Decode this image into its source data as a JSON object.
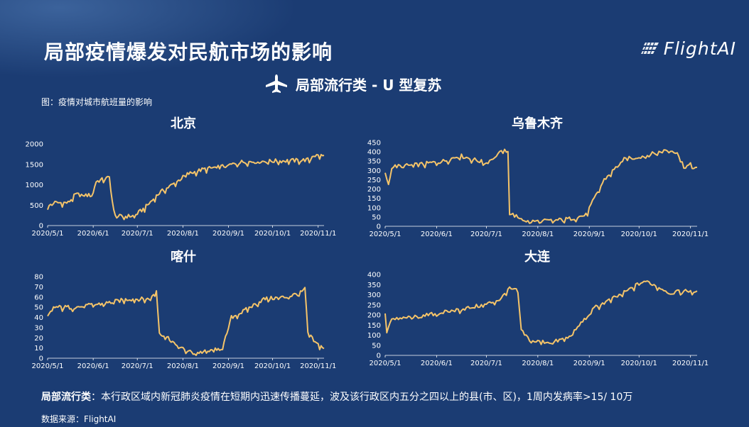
{
  "title": "局部疫情爆发对民航市场的影响",
  "logo": {
    "text": "FlightAI"
  },
  "subtitle": "局部流行类 - U 型复苏",
  "caption": "图：疫情对城市航班量的影响",
  "footnote": {
    "term": "局部流行类",
    "text": "：本行政区域内新冠肺炎疫情在短期内迅速传播蔓延，波及该行政区内五分之四以上的县(市、区)，1周内发病率>15/ 10万"
  },
  "source": "数据来源：FlightAI",
  "colors": {
    "background": "#1b3c73",
    "line": "#f5c469",
    "axis": "#ffffff"
  },
  "chart_data": [
    {
      "type": "line",
      "title": "北京",
      "x_range": [
        "2020-05-01",
        "2020-11-05"
      ],
      "ylim": [
        0,
        2000
      ],
      "yticks": [
        0,
        500,
        1000,
        1500,
        2000
      ],
      "xticks": [
        "2020/5/1",
        "2020/6/1",
        "2020/7/1",
        "2020/8/1",
        "2020/9/1",
        "2020/10/1",
        "2020/11/1"
      ],
      "key_points": [
        [
          "2020-05-01",
          420
        ],
        [
          "2020-05-04",
          560
        ],
        [
          "2020-05-15",
          560
        ],
        [
          "2020-05-20",
          760
        ],
        [
          "2020-05-31",
          740
        ],
        [
          "2020-06-03",
          1080
        ],
        [
          "2020-06-12",
          1180
        ],
        [
          "2020-06-14",
          600
        ],
        [
          "2020-06-16",
          230
        ],
        [
          "2020-06-21",
          220
        ],
        [
          "2020-06-29",
          240
        ],
        [
          "2020-07-06",
          430
        ],
        [
          "2020-07-16",
          800
        ],
        [
          "2020-07-26",
          1030
        ],
        [
          "2020-08-04",
          1260
        ],
        [
          "2020-08-15",
          1380
        ],
        [
          "2020-08-30",
          1460
        ],
        [
          "2020-09-10",
          1560
        ],
        [
          "2020-09-30",
          1580
        ],
        [
          "2020-10-20",
          1600
        ],
        [
          "2020-10-27",
          1620
        ],
        [
          "2020-10-28",
          1720
        ],
        [
          "2020-11-05",
          1710
        ]
      ]
    },
    {
      "type": "line",
      "title": "乌鲁木齐",
      "x_range": [
        "2020-05-01",
        "2020-11-05"
      ],
      "ylim": [
        0,
        450
      ],
      "yticks": [
        0,
        50,
        100,
        150,
        200,
        250,
        300,
        350,
        400,
        450
      ],
      "xticks": [
        "2020/5/1",
        "2020/6/1",
        "2020/7/1",
        "2020/8/1",
        "2020/9/1",
        "2020/10/1",
        "2020/11/1"
      ],
      "key_points": [
        [
          "2020-05-01",
          280
        ],
        [
          "2020-05-03",
          230
        ],
        [
          "2020-05-05",
          320
        ],
        [
          "2020-05-20",
          330
        ],
        [
          "2020-06-05",
          350
        ],
        [
          "2020-06-15",
          380
        ],
        [
          "2020-07-01",
          340
        ],
        [
          "2020-07-08",
          390
        ],
        [
          "2020-07-14",
          410
        ],
        [
          "2020-07-15",
          70
        ],
        [
          "2020-07-20",
          50
        ],
        [
          "2020-07-26",
          25
        ],
        [
          "2020-08-10",
          30
        ],
        [
          "2020-08-20",
          40
        ],
        [
          "2020-08-30",
          60
        ],
        [
          "2020-09-03",
          130
        ],
        [
          "2020-09-10",
          250
        ],
        [
          "2020-09-22",
          360
        ],
        [
          "2020-10-05",
          380
        ],
        [
          "2020-10-18",
          410
        ],
        [
          "2020-10-24",
          400
        ],
        [
          "2020-10-28",
          320
        ],
        [
          "2020-11-01",
          330
        ],
        [
          "2020-11-05",
          310
        ]
      ]
    },
    {
      "type": "line",
      "title": "喀什",
      "x_range": [
        "2020-05-01",
        "2020-11-05"
      ],
      "ylim": [
        0,
        80
      ],
      "yticks": [
        0,
        10,
        20,
        30,
        40,
        50,
        60,
        70,
        80
      ],
      "xticks": [
        "2020/5/1",
        "2020/6/1",
        "2020/7/1",
        "2020/8/1",
        "2020/9/1",
        "2020/10/1",
        "2020/11/1"
      ],
      "key_points": [
        [
          "2020-05-01",
          40
        ],
        [
          "2020-05-05",
          50
        ],
        [
          "2020-05-20",
          50
        ],
        [
          "2020-06-10",
          54
        ],
        [
          "2020-06-25",
          58
        ],
        [
          "2020-07-10",
          58
        ],
        [
          "2020-07-14",
          66
        ],
        [
          "2020-07-16",
          25
        ],
        [
          "2020-07-22",
          20
        ],
        [
          "2020-07-30",
          10
        ],
        [
          "2020-08-08",
          5
        ],
        [
          "2020-08-20",
          7
        ],
        [
          "2020-08-28",
          10
        ],
        [
          "2020-09-03",
          40
        ],
        [
          "2020-09-10",
          45
        ],
        [
          "2020-09-25",
          58
        ],
        [
          "2020-10-10",
          60
        ],
        [
          "2020-10-20",
          64
        ],
        [
          "2020-10-23",
          68
        ],
        [
          "2020-10-25",
          25
        ],
        [
          "2020-10-30",
          15
        ],
        [
          "2020-11-05",
          10
        ]
      ]
    },
    {
      "type": "line",
      "title": "大连",
      "x_range": [
        "2020-05-01",
        "2020-11-05"
      ],
      "ylim": [
        0,
        400
      ],
      "yticks": [
        0,
        50,
        100,
        150,
        200,
        250,
        300,
        350,
        400
      ],
      "xticks": [
        "2020/5/1",
        "2020/6/1",
        "2020/7/1",
        "2020/8/1",
        "2020/9/1",
        "2020/10/1",
        "2020/11/1"
      ],
      "key_points": [
        [
          "2020-05-01",
          200
        ],
        [
          "2020-05-02",
          110
        ],
        [
          "2020-05-04",
          180
        ],
        [
          "2020-05-20",
          190
        ],
        [
          "2020-06-10",
          220
        ],
        [
          "2020-06-30",
          250
        ],
        [
          "2020-07-10",
          280
        ],
        [
          "2020-07-14",
          330
        ],
        [
          "2020-07-20",
          320
        ],
        [
          "2020-07-22",
          120
        ],
        [
          "2020-07-28",
          70
        ],
        [
          "2020-08-10",
          65
        ],
        [
          "2020-08-20",
          90
        ],
        [
          "2020-08-26",
          150
        ],
        [
          "2020-09-05",
          240
        ],
        [
          "2020-09-20",
          300
        ],
        [
          "2020-09-30",
          350
        ],
        [
          "2020-10-05",
          370
        ],
        [
          "2020-10-12",
          340
        ],
        [
          "2020-10-20",
          310
        ],
        [
          "2020-11-01",
          320
        ],
        [
          "2020-11-05",
          310
        ]
      ]
    }
  ]
}
